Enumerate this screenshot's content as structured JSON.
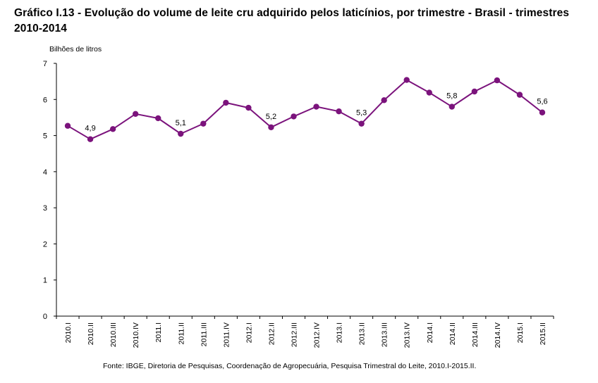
{
  "title": "Gráfico I.13 - Evolução do volume de leite cru adquirido pelos laticínios, por trimestre - Brasil - trimestres 2010-2014",
  "source": "Fonte: IBGE, Diretoria de Pesquisas, Coordenação de Agropecuária, Pesquisa Trimestral do Leite, 2010.I-2015.II.",
  "colors": {
    "series": "#7B137C",
    "axis": "#000000"
  },
  "chart_data": {
    "type": "line",
    "title": "Gráfico I.13 - Evolução do volume de leite cru adquirido pelos laticínios, por trimestre - Brasil - trimestres 2010-2014",
    "xlabel": "",
    "ylabel": "Bilhões de litros",
    "ylim": [
      0,
      7
    ],
    "yticks": [
      0,
      1,
      2,
      3,
      4,
      5,
      6,
      7
    ],
    "grid": false,
    "legend": "none",
    "categories": [
      "2010.I",
      "2010.II",
      "2010.III",
      "2010.IV",
      "2011.I",
      "2011.II",
      "2011.III",
      "2011.IV",
      "2012.I",
      "2012.II",
      "2012.III",
      "2012.IV",
      "2013.I",
      "2013.II",
      "2013.III",
      "2013.IV",
      "2014.I",
      "2014.II",
      "2014.III",
      "2014.IV",
      "2015.I",
      "2015.II"
    ],
    "series": [
      {
        "name": "",
        "values": [
          5.27,
          4.9,
          5.18,
          5.6,
          5.48,
          5.05,
          5.33,
          5.91,
          5.77,
          5.23,
          5.53,
          5.8,
          5.67,
          5.33,
          5.98,
          6.54,
          6.19,
          5.8,
          6.22,
          6.53,
          6.13,
          5.64
        ]
      }
    ],
    "data_labels": [
      {
        "index": 1,
        "text": "4,9"
      },
      {
        "index": 5,
        "text": "5,1"
      },
      {
        "index": 9,
        "text": "5,2"
      },
      {
        "index": 13,
        "text": "5,3"
      },
      {
        "index": 17,
        "text": "5,8"
      },
      {
        "index": 21,
        "text": "5,6"
      }
    ]
  }
}
